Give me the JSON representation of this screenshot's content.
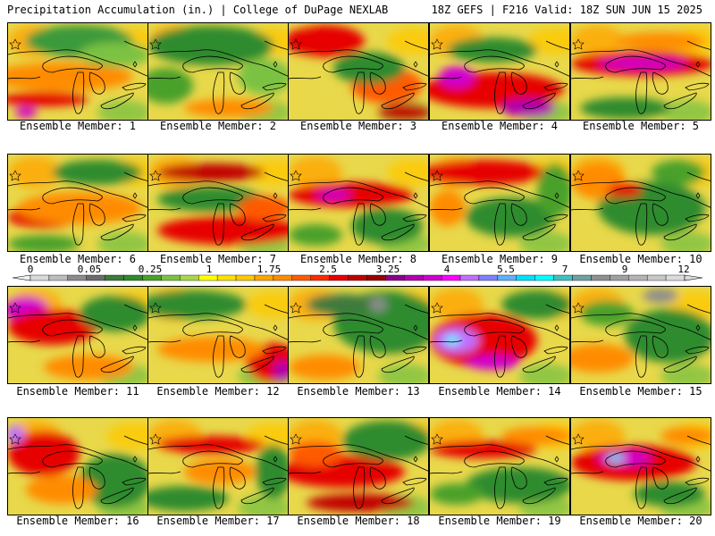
{
  "header": {
    "title": "Precipitation Accumulation (in.) | College of DuPage NEXLAB",
    "valid": "18Z GEFS | F216 Valid: 18Z SUN JUN 15 2025"
  },
  "members": [
    {
      "label": "Ensemble Member: 1",
      "pattern": "wet-band-south"
    },
    {
      "label": "Ensemble Member: 2",
      "pattern": "moderate-green-north"
    },
    {
      "label": "Ensemble Member: 3",
      "pattern": "wet-north-west"
    },
    {
      "label": "Ensemble Member: 4",
      "pattern": "heavy-south-magenta"
    },
    {
      "label": "Ensemble Member: 5",
      "pattern": "heavy-band-north"
    },
    {
      "label": "Ensemble Member: 6",
      "pattern": "wet-band-southwest"
    },
    {
      "label": "Ensemble Member: 7",
      "pattern": "heavy-band-south"
    },
    {
      "label": "Ensemble Member: 8",
      "pattern": "band-central-magenta"
    },
    {
      "label": "Ensemble Member: 9",
      "pattern": "wet-north-east"
    },
    {
      "label": "Ensemble Member: 10",
      "pattern": "moderate-mixed"
    },
    {
      "label": "Ensemble Member: 11",
      "pattern": "heavy-northwest-magenta"
    },
    {
      "label": "Ensemble Member: 12",
      "pattern": "wet-southeast"
    },
    {
      "label": "Ensemble Member: 13",
      "pattern": "dry-green-east"
    },
    {
      "label": "Ensemble Member: 14",
      "pattern": "heavy-west-cyan"
    },
    {
      "label": "Ensemble Member: 15",
      "pattern": "moderate-green-east"
    },
    {
      "label": "Ensemble Member: 16",
      "pattern": "wet-northwest-cyan"
    },
    {
      "label": "Ensemble Member: 17",
      "pattern": "wet-band-north"
    },
    {
      "label": "Ensemble Member: 18",
      "pattern": "heavy-band-south-green-north"
    },
    {
      "label": "Ensemble Member: 19",
      "pattern": "wet-band-north-green"
    },
    {
      "label": "Ensemble Member: 20",
      "pattern": "heavy-band-cyan"
    }
  ],
  "colorbar": {
    "tick_labels": [
      "0",
      "0.05",
      "0.25",
      "1",
      "1.75",
      "2.5",
      "3.25",
      "4",
      "5.5",
      "7",
      "9",
      "12"
    ],
    "colors": [
      "#d9d9d9",
      "#bdbdbd",
      "#8c8c8c",
      "#6b6b6b",
      "#3d7a3d",
      "#2e8b2e",
      "#4aa02c",
      "#7cc242",
      "#a8d84a",
      "#ffff00",
      "#ffe100",
      "#ffc800",
      "#ffa500",
      "#ff8c00",
      "#ff5a00",
      "#ff2a00",
      "#e60000",
      "#c00000",
      "#9a0000",
      "#8b008b",
      "#b000b0",
      "#d000d0",
      "#ff00ff",
      "#c070ff",
      "#8080ff",
      "#60b0ff",
      "#00e0ff",
      "#00ffff",
      "#40c0c0",
      "#70a0a0",
      "#909090",
      "#a0a0a0",
      "#b4b4b4",
      "#c8c8c8",
      "#dcdcdc"
    ]
  },
  "map": {
    "land_outline_color": "#000000"
  }
}
